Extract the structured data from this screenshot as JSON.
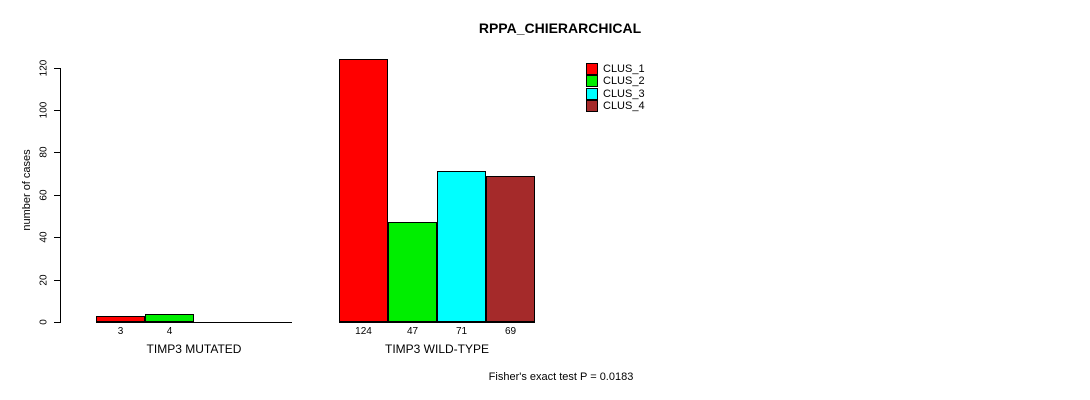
{
  "chart_data": {
    "type": "bar",
    "title": "RPPA_CHIERARCHICAL",
    "ylabel": "number of cases",
    "xlabel": "",
    "ylim": [
      0,
      120
    ],
    "yticks": [
      0,
      20,
      40,
      60,
      80,
      100,
      120
    ],
    "categories": [
      "TIMP3 MUTATED",
      "TIMP3 WILD-TYPE"
    ],
    "series": [
      {
        "name": "CLUS_1",
        "color": "#ff0000",
        "values": [
          3,
          124
        ]
      },
      {
        "name": "CLUS_2",
        "color": "#00ee00",
        "values": [
          4,
          47
        ]
      },
      {
        "name": "CLUS_3",
        "color": "#00ffff",
        "values": [
          0,
          71
        ]
      },
      {
        "name": "CLUS_4",
        "color": "#a52a2a",
        "values": [
          0,
          69
        ]
      }
    ],
    "bar_value_labels": [
      [
        "3",
        "4",
        "",
        ""
      ],
      [
        "124",
        "47",
        "71",
        "69"
      ]
    ],
    "legend_entries": [
      "CLUS_1",
      "CLUS_2",
      "CLUS_3",
      "CLUS_4"
    ],
    "legend_position": "top-right",
    "grid": false,
    "annotation": "Fisher's exact test P = 0.0183"
  }
}
